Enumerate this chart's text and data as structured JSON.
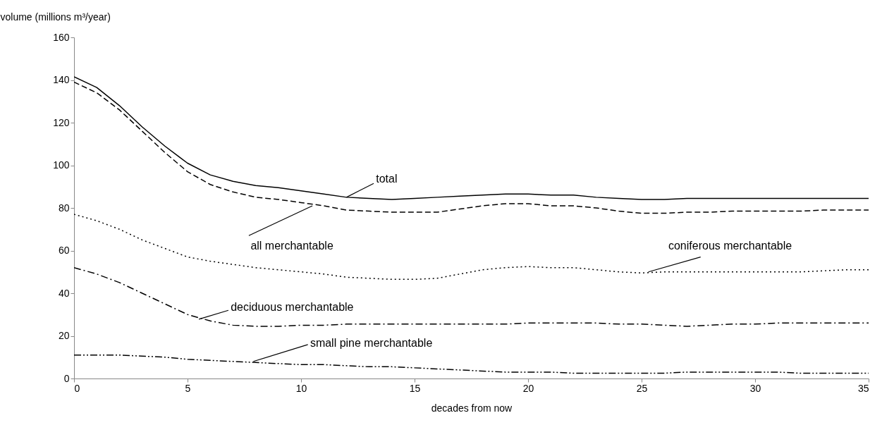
{
  "chart_data": {
    "type": "line",
    "xlabel": "decades from now",
    "ylabel": "volume (millions m³/year)",
    "x": [
      0,
      1,
      2,
      3,
      4,
      5,
      6,
      7,
      8,
      9,
      10,
      11,
      12,
      13,
      14,
      15,
      16,
      17,
      18,
      19,
      20,
      21,
      22,
      23,
      24,
      25,
      26,
      27,
      28,
      29,
      30,
      31,
      32,
      33,
      34,
      35
    ],
    "xlim": [
      0,
      35
    ],
    "xticks": [
      0,
      5,
      10,
      15,
      20,
      25,
      30,
      35
    ],
    "ylim": [
      0,
      160
    ],
    "yticks": [
      0,
      20,
      40,
      60,
      80,
      100,
      120,
      140,
      160
    ],
    "grid": false,
    "legend": false,
    "marker": "none",
    "series": [
      {
        "name": "total",
        "color": "#000000",
        "line_style": "solid",
        "values": [
          141.5,
          136.5,
          128,
          118,
          109,
          101,
          95.5,
          92.5,
          90.5,
          89.5,
          88,
          86.5,
          85,
          84.5,
          84,
          84.5,
          85,
          85.5,
          86,
          86.5,
          86.5,
          86,
          86,
          85,
          84.5,
          84,
          84,
          84.5,
          84.5,
          84.5,
          84.5,
          84.5,
          84.5,
          84.5,
          84.5,
          84.5
        ]
      },
      {
        "name": "all merchantable",
        "color": "#000000",
        "line_style": "dashed",
        "values": [
          139,
          134,
          126,
          116,
          106,
          97,
          91,
          87.5,
          85,
          84,
          82.5,
          81,
          79,
          78.5,
          78,
          78,
          78,
          79.5,
          81,
          82,
          82,
          81,
          81,
          80,
          78.5,
          77.5,
          77.5,
          78,
          78,
          78.5,
          78.5,
          78.5,
          78.5,
          79,
          79,
          79
        ]
      },
      {
        "name": "coniferous merchantable",
        "color": "#000000",
        "line_style": "dotted",
        "values": [
          77,
          74,
          70,
          65,
          61,
          57,
          55,
          53.5,
          52,
          51,
          50,
          49,
          47.5,
          47,
          46.5,
          46.5,
          47,
          49,
          51,
          52,
          52.5,
          52,
          52,
          51,
          50,
          49.5,
          50,
          50,
          50,
          50,
          50,
          50,
          50,
          50.5,
          51,
          51
        ]
      },
      {
        "name": "deciduous merchantable",
        "color": "#000000",
        "line_style": "dashdot",
        "values": [
          52,
          49,
          45,
          40,
          35,
          30,
          27,
          25,
          24.5,
          24.5,
          25,
          25,
          25.5,
          25.5,
          25.5,
          25.5,
          25.5,
          25.5,
          25.5,
          25.5,
          26,
          26,
          26,
          26,
          25.5,
          25.5,
          25,
          24.5,
          25,
          25.5,
          25.5,
          26,
          26,
          26,
          26,
          26
        ]
      },
      {
        "name": "small pine merchantable",
        "color": "#000000",
        "line_style": "dashdotdot",
        "values": [
          11,
          11,
          11,
          10.5,
          10,
          9,
          8.5,
          8,
          7.5,
          7,
          6.5,
          6.5,
          6,
          5.5,
          5.5,
          5,
          4.5,
          4,
          3.5,
          3,
          3,
          3,
          2.5,
          2.5,
          2.5,
          2.5,
          2.5,
          3,
          3,
          3,
          3,
          3,
          2.5,
          2.5,
          2.5,
          2.5
        ]
      }
    ]
  }
}
